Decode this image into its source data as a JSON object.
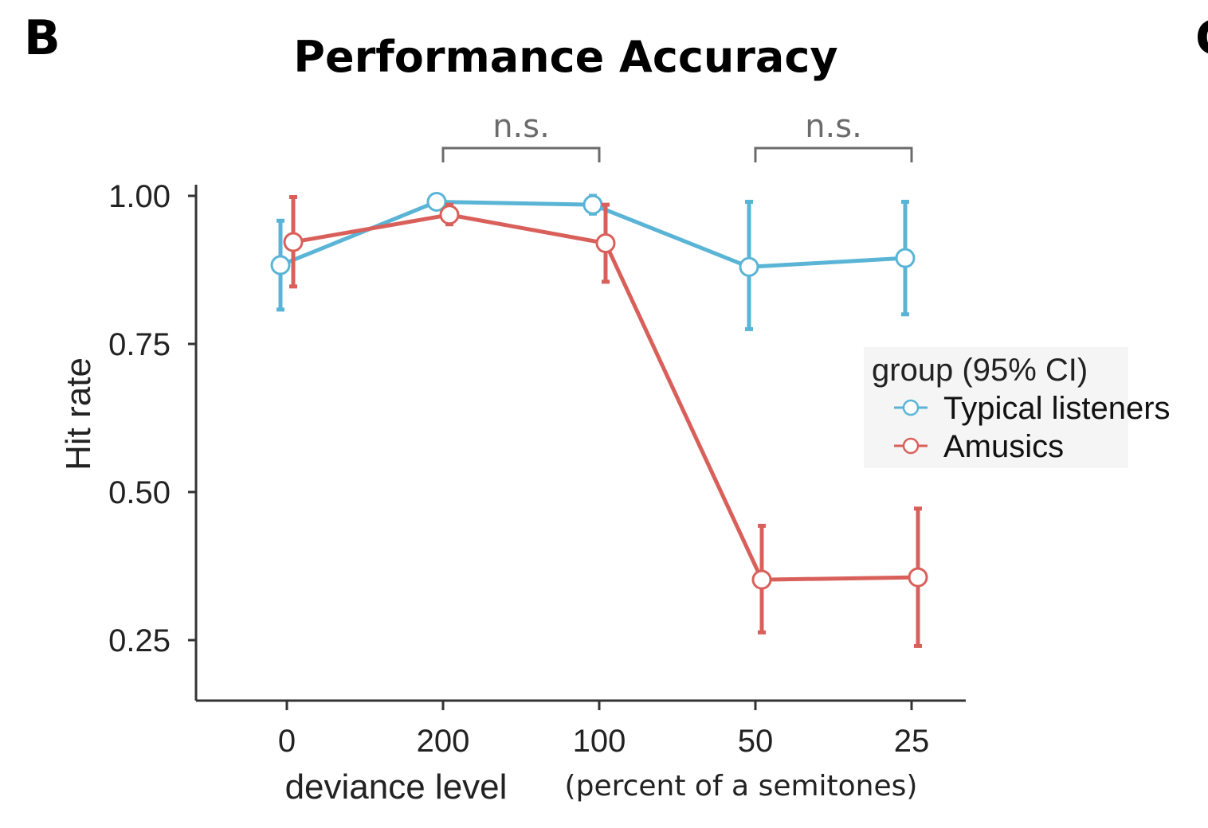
{
  "panel": {
    "label": "B",
    "next_label": "C"
  },
  "chart_data": {
    "type": "line",
    "title": "Performance Accuracy",
    "xlabel": "deviance level",
    "xlabel_sub": "(percent of a semitones)",
    "ylabel": "Hit rate",
    "categories": [
      "0",
      "200",
      "100",
      "50",
      "25"
    ],
    "yticks": [
      0.25,
      0.5,
      0.75,
      1.0
    ],
    "ytick_labels": [
      "0.25",
      "0.50",
      "0.75",
      "1.00"
    ],
    "ylim": [
      0.16,
      1.05
    ],
    "legend_title": "group (95% CI)",
    "series": [
      {
        "name": "Typical listeners",
        "color": "#5ab4d6",
        "values": [
          0.883,
          0.99,
          0.985,
          0.88,
          0.895
        ],
        "ci_low": [
          0.808,
          0.99,
          0.97,
          0.775,
          0.8
        ],
        "ci_high": [
          0.958,
          0.99,
          1.0,
          0.99,
          0.99
        ]
      },
      {
        "name": "Amusics",
        "color": "#d9605a",
        "values": [
          0.922,
          0.968,
          0.92,
          0.352,
          0.356
        ],
        "ci_low": [
          0.847,
          0.952,
          0.855,
          0.263,
          0.24
        ],
        "ci_high": [
          0.998,
          0.985,
          0.985,
          0.443,
          0.472
        ]
      }
    ],
    "annotations": [
      {
        "text": "n.s.",
        "from": "200",
        "to": "100"
      },
      {
        "text": "n.s.",
        "from": "50",
        "to": "25"
      }
    ]
  }
}
